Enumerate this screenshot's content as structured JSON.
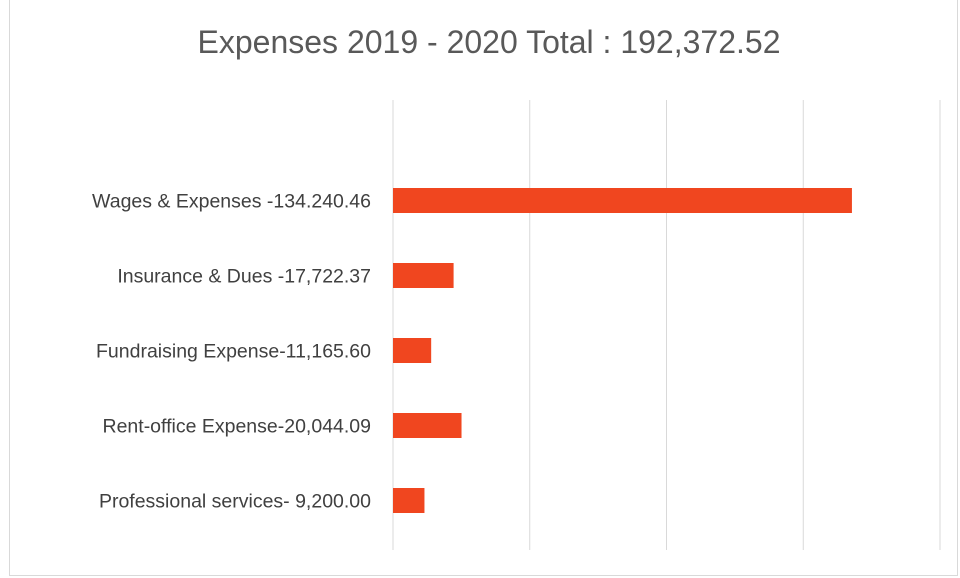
{
  "chart_data": {
    "type": "bar",
    "orientation": "horizontal",
    "title": "Expenses 2019 - 2020 Total : 192,372.52",
    "categories": [
      "Wages & Expenses -134.240.46",
      "Insurance & Dues -17,722.37",
      "Fundraising Expense-11,165.60",
      "Rent-office Expense-20,044.09",
      "Professional services- 9,200.00"
    ],
    "values": [
      134240.46,
      17722.37,
      11165.6,
      20044.09,
      9200.0
    ],
    "xlim": [
      0,
      160000
    ],
    "gridlines": [
      0,
      40000,
      80000,
      120000,
      160000
    ],
    "grid": true,
    "legend": "none",
    "bar_color": "#f0461f",
    "grid_color": "#d9d9d9"
  }
}
